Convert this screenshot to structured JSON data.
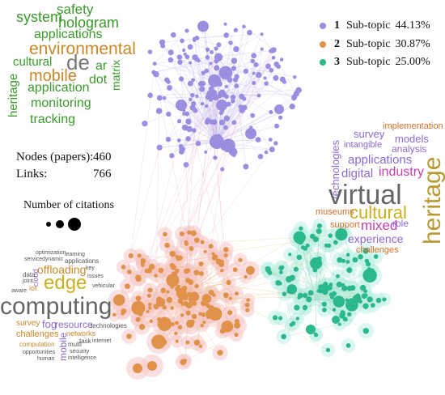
{
  "legend": [
    {
      "number": "1",
      "label": "Sub-topic",
      "percent": "44.13%",
      "color": "#9b8de0"
    },
    {
      "number": "2",
      "label": "Sub-topic",
      "percent": "30.87%",
      "color": "#e0924a"
    },
    {
      "number": "3",
      "label": "Sub-topic",
      "percent": "25.00%",
      "color": "#2bb88c"
    }
  ],
  "stats": {
    "nodes_label": "Nodes (papers):",
    "nodes_value": "460",
    "links_label": "Links:",
    "links_value": "766"
  },
  "citations_label": "Number of citations",
  "clusters": {
    "purple": {
      "color": "#9b8de0",
      "edge": "#c9c0ee"
    },
    "orange": {
      "color": "#e0924a",
      "halo": "#f7c9c9"
    },
    "green": {
      "color": "#2bb88c",
      "halo": "#bff0e6"
    }
  },
  "wordclouds": {
    "green": [
      {
        "text": "system",
        "size": 18,
        "color": "#3a9a2a"
      },
      {
        "text": "safety",
        "size": 17,
        "color": "#3a9a2a"
      },
      {
        "text": "hologram",
        "size": 18,
        "color": "#3a9a2a"
      },
      {
        "text": "applications",
        "size": 16,
        "color": "#3a9a2a"
      },
      {
        "text": "environmental",
        "size": 21,
        "color": "#c8882a"
      },
      {
        "text": "cultural",
        "size": 15,
        "color": "#3a9a2a"
      },
      {
        "text": "de",
        "size": 26,
        "color": "#777777"
      },
      {
        "text": "ar",
        "size": 16,
        "color": "#3a9a2a"
      },
      {
        "text": "mobile",
        "size": 20,
        "color": "#c8882a"
      },
      {
        "text": "dot",
        "size": 16,
        "color": "#3a9a2a"
      },
      {
        "text": "matrix",
        "size": 14,
        "color": "#3a9a2a"
      },
      {
        "text": "heritage",
        "size": 15,
        "color": "#3a9a2a"
      },
      {
        "text": "application",
        "size": 16,
        "color": "#3a9a2a"
      },
      {
        "text": "monitoring",
        "size": 16,
        "color": "#3a9a2a"
      },
      {
        "text": "tracking",
        "size": 16,
        "color": "#3a9a2a"
      }
    ],
    "virtual": [
      {
        "text": "implementation",
        "size": 11,
        "color": "#d4702a"
      },
      {
        "text": "survey",
        "size": 13,
        "color": "#8a6ad0"
      },
      {
        "text": "models",
        "size": 13,
        "color": "#8a6ad0"
      },
      {
        "text": "intangible",
        "size": 11,
        "color": "#8a6ad0"
      },
      {
        "text": "analysis",
        "size": 12,
        "color": "#8a6ad0"
      },
      {
        "text": "technologies",
        "size": 13,
        "color": "#8a6ad0"
      },
      {
        "text": "applications",
        "size": 15,
        "color": "#8a6ad0"
      },
      {
        "text": "digital",
        "size": 15,
        "color": "#8a6ad0"
      },
      {
        "text": "industry",
        "size": 16,
        "color": "#c040b0"
      },
      {
        "text": "virtual",
        "size": 34,
        "color": "#666666"
      },
      {
        "text": "heritage",
        "size": 30,
        "color": "#b89a30"
      },
      {
        "text": "cultural",
        "size": 22,
        "color": "#c8b020"
      },
      {
        "text": "museums",
        "size": 11,
        "color": "#d4702a"
      },
      {
        "text": "mixed",
        "size": 17,
        "color": "#c040b0"
      },
      {
        "text": "role",
        "size": 12,
        "color": "#8a6ad0"
      },
      {
        "text": "support",
        "size": 11,
        "color": "#d4702a"
      },
      {
        "text": "experience",
        "size": 14,
        "color": "#8a6ad0"
      },
      {
        "text": "challenges",
        "size": 11,
        "color": "#d4702a"
      }
    ],
    "edge": [
      {
        "text": "optimization",
        "size": 7,
        "color": "#555555"
      },
      {
        "text": "learning",
        "size": 7,
        "color": "#555555"
      },
      {
        "text": "service",
        "size": 7,
        "color": "#555555"
      },
      {
        "text": "dynamic",
        "size": 7,
        "color": "#555555"
      },
      {
        "text": "applications",
        "size": 8,
        "color": "#555555"
      },
      {
        "text": "offloading",
        "size": 14,
        "color": "#c8882a"
      },
      {
        "text": "key",
        "size": 7,
        "color": "#555555"
      },
      {
        "text": "cloud",
        "size": 9,
        "color": "#8a6ad0"
      },
      {
        "text": "data",
        "size": 8,
        "color": "#555555"
      },
      {
        "text": "joint",
        "size": 7,
        "color": "#555555"
      },
      {
        "text": "edge",
        "size": 24,
        "color": "#c8b020"
      },
      {
        "text": "issues",
        "size": 7,
        "color": "#555555"
      },
      {
        "text": "iot",
        "size": 9,
        "color": "#c8882a"
      },
      {
        "text": "aware",
        "size": 7,
        "color": "#555555"
      },
      {
        "text": "vehicular",
        "size": 7,
        "color": "#555555"
      },
      {
        "text": "computing",
        "size": 30,
        "color": "#666666"
      },
      {
        "text": "survey",
        "size": 10,
        "color": "#c8882a"
      },
      {
        "text": "fog",
        "size": 13,
        "color": "#8a6ad0"
      },
      {
        "text": "resource",
        "size": 12,
        "color": "#8a6ad0"
      },
      {
        "text": "technologies",
        "size": 8,
        "color": "#555555"
      },
      {
        "text": "challenges",
        "size": 11,
        "color": "#c8882a"
      },
      {
        "text": "networks",
        "size": 9,
        "color": "#c8882a"
      },
      {
        "text": "mobile",
        "size": 12,
        "color": "#8a6ad0"
      },
      {
        "text": "computation",
        "size": 8,
        "color": "#c8882a"
      },
      {
        "text": "task",
        "size": 8,
        "color": "#555555"
      },
      {
        "text": "internet",
        "size": 7,
        "color": "#555555"
      },
      {
        "text": "multi",
        "size": 8,
        "color": "#555555"
      },
      {
        "text": "opportunities",
        "size": 7,
        "color": "#555555"
      },
      {
        "text": "security",
        "size": 7,
        "color": "#555555"
      },
      {
        "text": "human",
        "size": 7,
        "color": "#555555"
      },
      {
        "text": "intelligence",
        "size": 7,
        "color": "#555555"
      }
    ]
  }
}
